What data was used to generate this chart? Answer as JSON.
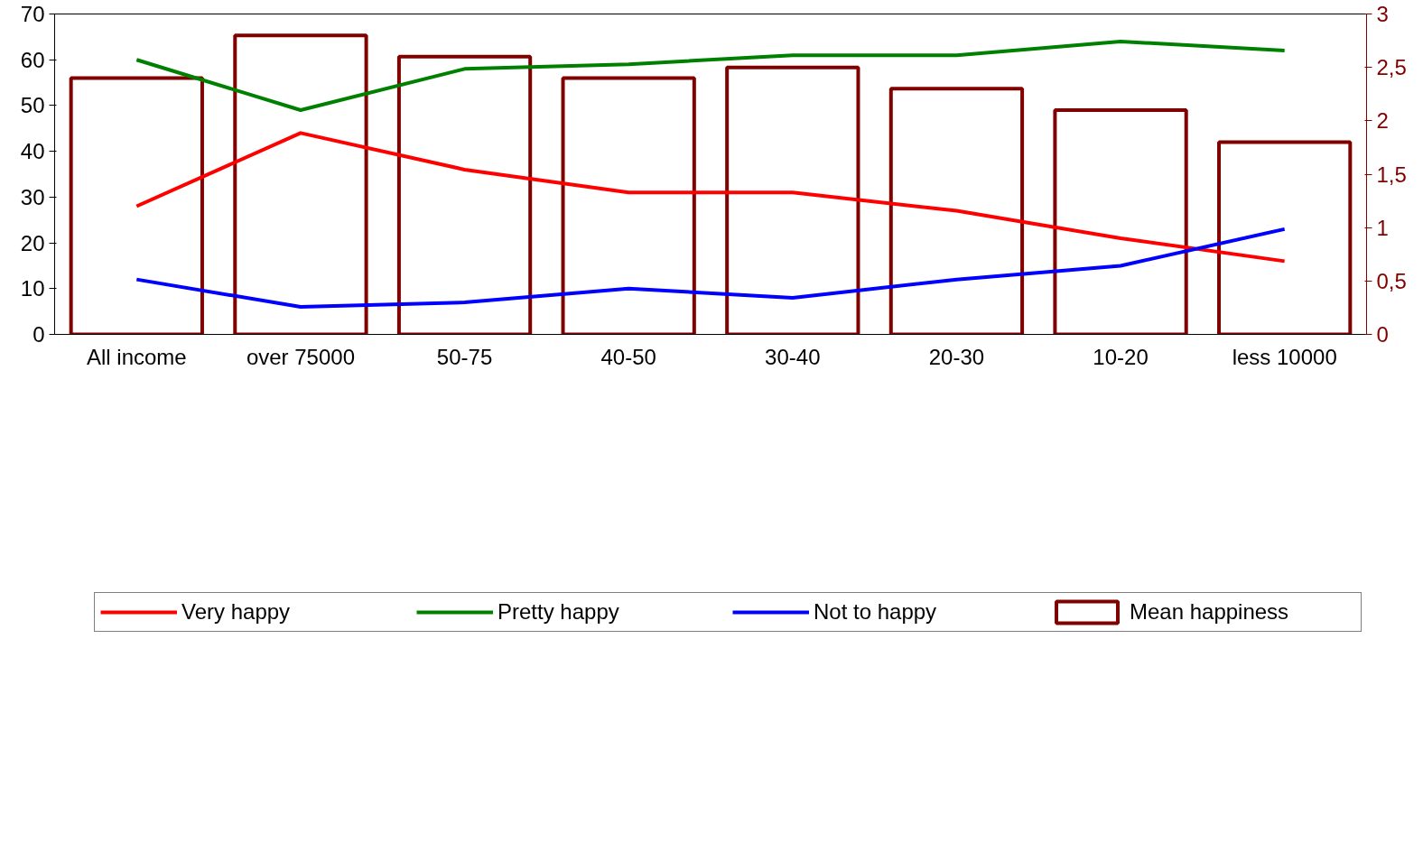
{
  "chart_data": {
    "type": "line",
    "categories": [
      "All income",
      "over 75000",
      "50-75",
      "40-50",
      "30-40",
      "20-30",
      "10-20",
      "less 10000"
    ],
    "series": [
      {
        "name": "Very happy",
        "color": "#ff0000",
        "values": [
          28,
          44,
          36,
          31,
          31,
          27,
          21,
          16
        ]
      },
      {
        "name": "Pretty happy",
        "color": "#008000",
        "values": [
          60,
          49,
          58,
          59,
          61,
          61,
          64,
          62
        ]
      },
      {
        "name": "Not to happy",
        "color": "#0000ff",
        "values": [
          12,
          6,
          7,
          10,
          8,
          12,
          15,
          23
        ]
      },
      {
        "name": "Mean happiness",
        "type": "bar",
        "axis": "y2",
        "color": "#800000",
        "values": [
          2.4,
          2.8,
          2.6,
          2.4,
          2.5,
          2.3,
          2.1,
          1.8
        ]
      }
    ],
    "ylim": [
      0,
      70
    ],
    "yticks": [
      0,
      10,
      20,
      30,
      40,
      50,
      60,
      70
    ],
    "y2lim": [
      0,
      3
    ],
    "y2ticks": [
      0,
      {
        "value": 0.5,
        "label": "0,5"
      },
      1,
      {
        "value": 1.5,
        "label": "1,5"
      },
      2,
      {
        "value": 2.5,
        "label": "2,5"
      },
      3
    ],
    "grid": false,
    "legend": "bottom",
    "marker": "none",
    "line_style": "solid"
  }
}
